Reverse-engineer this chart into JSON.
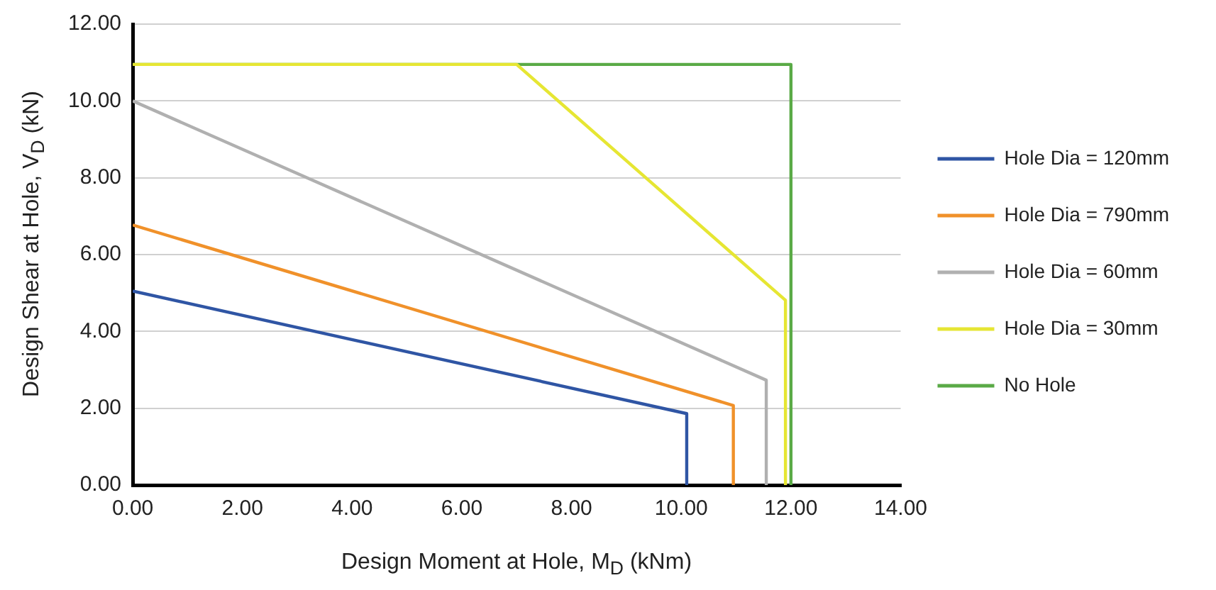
{
  "chart_data": {
    "type": "line",
    "xlabel": "Design Moment at Hole, M$_{D}$ (kNm)",
    "ylabel": "Design Shear at Hole, V$_{D}$ (kN)",
    "xlim": [
      0,
      14
    ],
    "xticks": [
      {
        "value": 0,
        "label": "0.00"
      },
      {
        "value": 2,
        "label": "2.00"
      },
      {
        "value": 4,
        "label": "4.00"
      },
      {
        "value": 6,
        "label": "6.00"
      },
      {
        "value": 8,
        "label": "8.00"
      },
      {
        "value": 10,
        "label": "10.00"
      },
      {
        "value": 12,
        "label": "12.00"
      },
      {
        "value": 14,
        "label": "14.00"
      }
    ],
    "ylim": [
      0,
      12
    ],
    "yticks": [
      {
        "value": 0,
        "label": "0.00"
      },
      {
        "value": 2,
        "label": "2.00"
      },
      {
        "value": 4,
        "label": "4.00"
      },
      {
        "value": 6,
        "label": "6.00"
      },
      {
        "value": 8,
        "label": "8.00"
      },
      {
        "value": 10,
        "label": "10.00"
      },
      {
        "value": 12,
        "label": "12.00"
      }
    ],
    "grid": "y",
    "legend": "right",
    "marker": "none",
    "series": [
      {
        "name": "Hole Dia = 120mm",
        "color": "#2f55a4",
        "x": [
          0,
          10.1,
          10.1
        ],
        "values": [
          5.05,
          1.86,
          0
        ]
      },
      {
        "name": "Hole Dia = 790mm",
        "color": "#f0912a",
        "x": [
          0,
          10.95,
          10.95
        ],
        "values": [
          6.77,
          2.07,
          0
        ]
      },
      {
        "name": "Hole Dia = 60mm",
        "color": "#b0b0b0",
        "x": [
          0,
          11.55,
          11.55
        ],
        "values": [
          10.0,
          2.73,
          0
        ]
      },
      {
        "name": "Hole Dia = 30mm",
        "color": "#e6e633",
        "x": [
          0,
          7.0,
          11.9,
          11.9
        ],
        "values": [
          10.95,
          10.95,
          4.81,
          0
        ]
      },
      {
        "name": "No Hole",
        "color": "#5aaa46",
        "x": [
          0,
          12.0,
          12.0
        ],
        "values": [
          10.95,
          10.95,
          0
        ]
      }
    ]
  }
}
